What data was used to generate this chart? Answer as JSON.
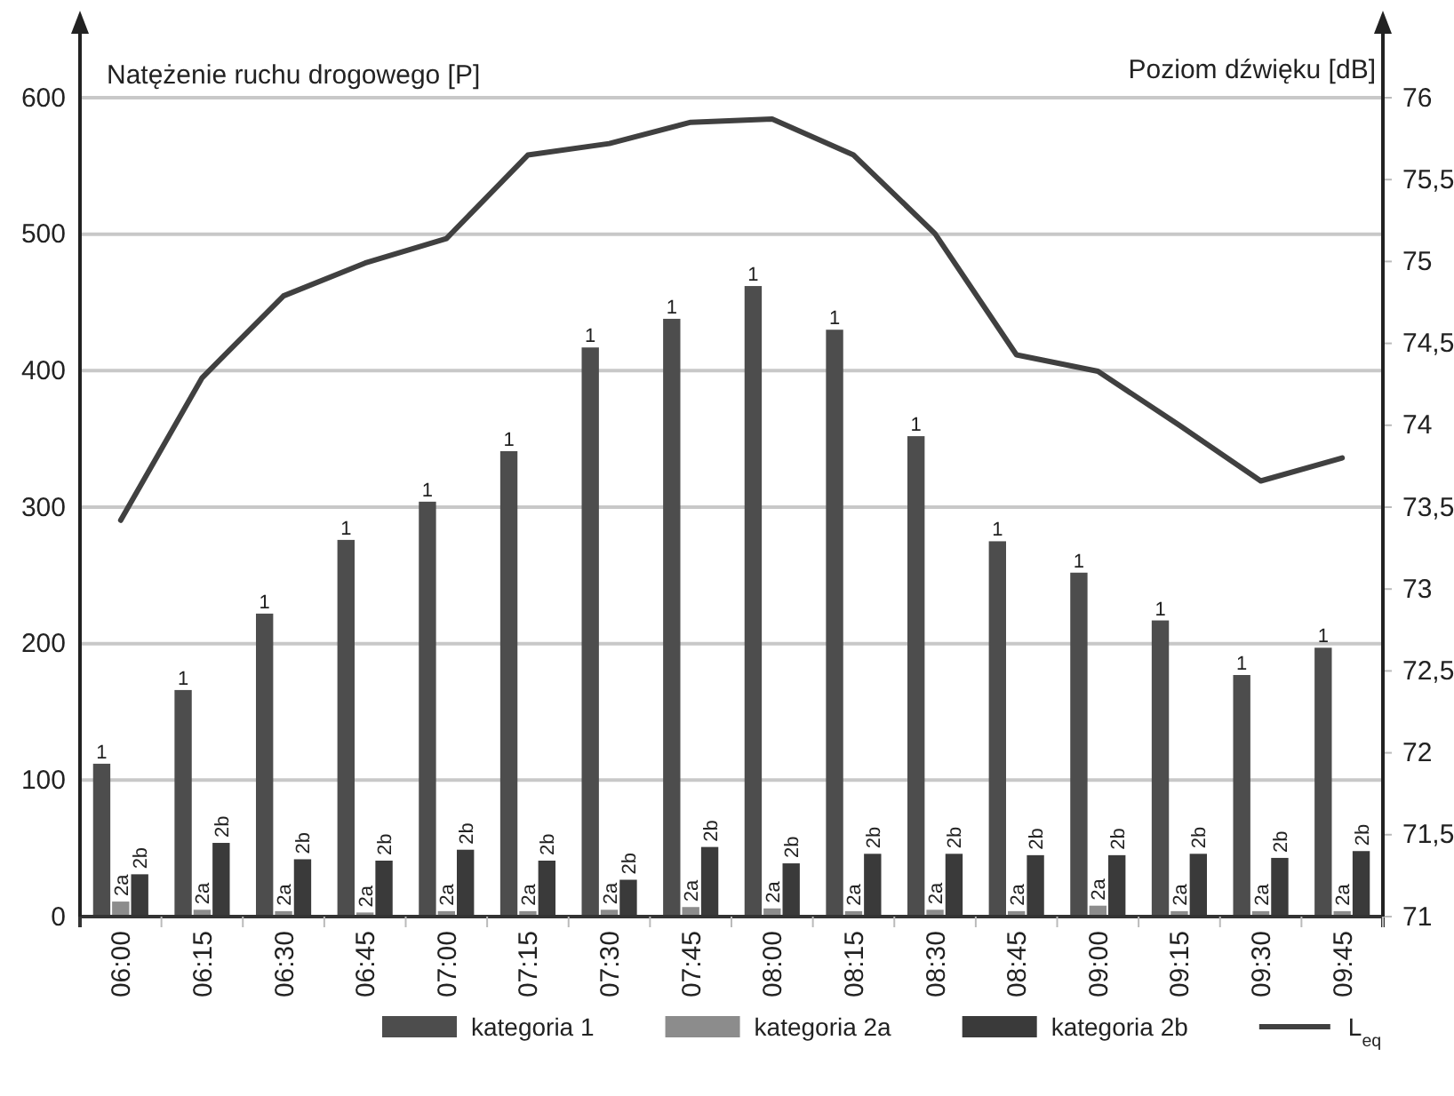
{
  "chart_data": {
    "type": "bar",
    "ylabel": "Natężenie ruchu drogowego [P]",
    "y2label": "Poziom dźwięku [dB]",
    "categories": [
      "06:00",
      "06:15",
      "06:30",
      "06:45",
      "07:00",
      "07:15",
      "07:30",
      "07:45",
      "08:00",
      "08:15",
      "08:30",
      "08:45",
      "09:00",
      "09:15",
      "09:30",
      "09:45"
    ],
    "series": [
      {
        "name": "kategoria 1",
        "color": "#4d4d4d",
        "values": [
          112,
          166,
          222,
          276,
          304,
          341,
          417,
          438,
          462,
          430,
          352,
          275,
          252,
          217,
          177,
          197
        ]
      },
      {
        "name": "kategoria 2a",
        "color": "#8c8c8c",
        "values": [
          11,
          5,
          4,
          3,
          4,
          4,
          5,
          7,
          6,
          4,
          5,
          4,
          8,
          4,
          4,
          4
        ]
      },
      {
        "name": "kategoria 2b",
        "color": "#3a3a3a",
        "values": [
          31,
          54,
          42,
          41,
          49,
          41,
          27,
          51,
          39,
          46,
          46,
          45,
          45,
          46,
          43,
          48
        ]
      },
      {
        "name": "L$_{eq}$",
        "type": "line",
        "axis": "y2",
        "color": "#404040",
        "values": [
          73.42,
          74.29,
          74.79,
          74.99,
          75.14,
          75.65,
          75.72,
          75.85,
          75.87,
          75.65,
          75.17,
          74.43,
          74.33,
          74.0,
          73.66,
          73.8
        ]
      }
    ],
    "annotations": [
      "1",
      "2a",
      "2b",
      "1",
      "2a",
      "2b",
      "1",
      "2a",
      "2b",
      "1",
      "2a",
      "2b",
      "1",
      "2a",
      "2b",
      "1",
      "2a",
      "2b",
      "1",
      "2a",
      "2b",
      "1",
      "2a",
      "2b",
      "1",
      "2a",
      "2b",
      "1",
      "2a",
      "2b",
      "1",
      "2a",
      "2b",
      "1",
      "2a",
      "2b",
      "1",
      "2a",
      "2b",
      "1",
      "2a",
      "2b",
      "1",
      "2a",
      "2b",
      "1",
      "2a",
      "2b"
    ],
    "ylim": [
      0,
      600
    ],
    "yticks": [
      0,
      100,
      200,
      300,
      400,
      500,
      600
    ],
    "y2lim": [
      71,
      76
    ],
    "y2ticks": [
      71,
      {
        "value": 71.5,
        "label": "71,5"
      },
      72,
      {
        "value": 72.5,
        "label": "72,5"
      },
      73,
      {
        "value": 73.5,
        "label": "73,5"
      },
      74,
      {
        "value": 74.5,
        "label": "74,5"
      },
      75,
      {
        "value": 75.5,
        "label": "75,5"
      },
      76
    ],
    "grid": "y",
    "legend": "bottom",
    "marker": "none",
    "line_style": "solid"
  }
}
